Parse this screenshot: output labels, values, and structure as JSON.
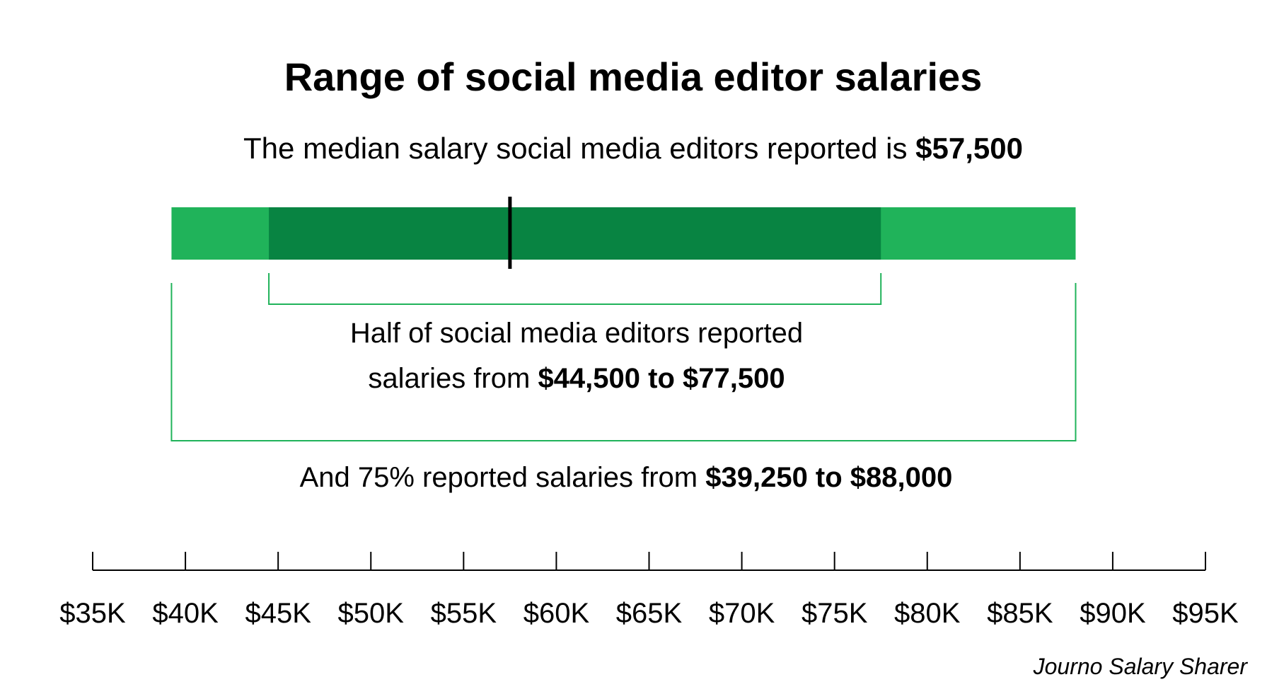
{
  "chart_data": {
    "type": "range",
    "title": "Range of social media editor salaries",
    "subtitle": {
      "prefix": "The median salary social media editors reported is ",
      "value": "$57,500"
    },
    "median": 57500,
    "inner_range": [
      44500,
      77500
    ],
    "outer_range": [
      39250,
      88000
    ],
    "inner_label": {
      "line1": "Half of social media editors reported",
      "line2_prefix": "salaries from ",
      "line2_value": "$44,500 to $77,500"
    },
    "outer_label": {
      "prefix": "And 75% reported salaries from ",
      "value": "$39,250 to $88,000"
    },
    "axis": {
      "min": 35000,
      "max": 95000,
      "ticks": [
        35000,
        40000,
        45000,
        50000,
        55000,
        60000,
        65000,
        70000,
        75000,
        80000,
        85000,
        90000,
        95000
      ],
      "tick_labels": [
        "$35K",
        "$40K",
        "$45K",
        "$50K",
        "$55K",
        "$60K",
        "$65K",
        "$70K",
        "$75K",
        "$80K",
        "$85K",
        "$90K",
        "$95K"
      ]
    },
    "source": "Journo Salary Sharer"
  },
  "colors": {
    "outer": "#20b35a",
    "inner": "#088442",
    "bracket": "#20b35a",
    "median_line": "#000000",
    "axis": "#000000"
  }
}
